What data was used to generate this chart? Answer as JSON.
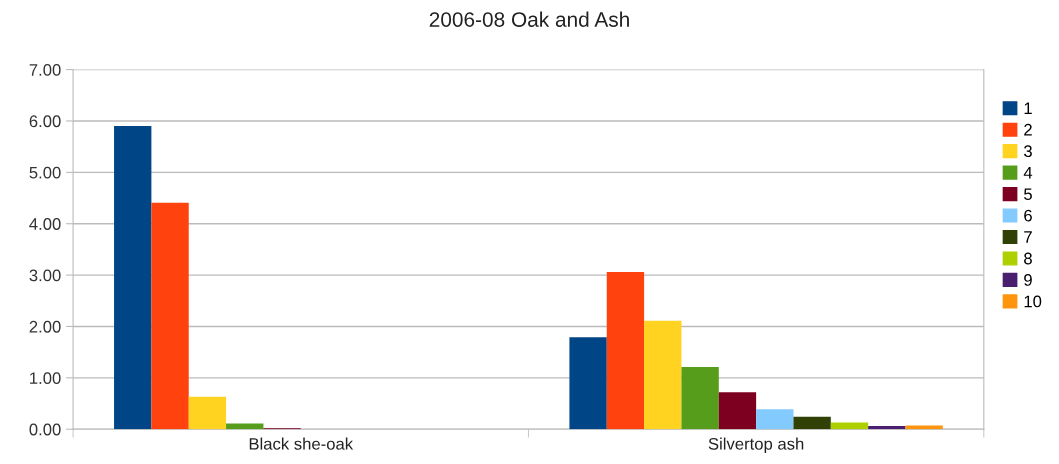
{
  "chart_data": {
    "type": "bar",
    "title": "2006-08 Oak and Ash",
    "categories": [
      "Black she-oak",
      "Silvertop ash"
    ],
    "series": [
      {
        "name": "1",
        "color": "#004586",
        "values": [
          5.9,
          1.79
        ]
      },
      {
        "name": "2",
        "color": "#ff420e",
        "values": [
          4.41,
          3.06
        ]
      },
      {
        "name": "3",
        "color": "#ffd320",
        "values": [
          0.63,
          2.11
        ]
      },
      {
        "name": "4",
        "color": "#579d1c",
        "values": [
          0.11,
          1.21
        ]
      },
      {
        "name": "5",
        "color": "#7e0021",
        "values": [
          0.02,
          0.72
        ]
      },
      {
        "name": "6",
        "color": "#83caff",
        "values": [
          0,
          0.39
        ]
      },
      {
        "name": "7",
        "color": "#314004",
        "values": [
          0,
          0.24
        ]
      },
      {
        "name": "8",
        "color": "#aecf00",
        "values": [
          0,
          0.13
        ]
      },
      {
        "name": "9",
        "color": "#4b1f6f",
        "values": [
          0,
          0.06
        ]
      },
      {
        "name": "10",
        "color": "#ff950e",
        "values": [
          0,
          0.07
        ]
      }
    ],
    "ylim": [
      0,
      7
    ],
    "yticks": [
      {
        "value": 0,
        "label": "0.00"
      },
      {
        "value": 1,
        "label": "1.00"
      },
      {
        "value": 2,
        "label": "2.00"
      },
      {
        "value": 3,
        "label": "3.00"
      },
      {
        "value": 4,
        "label": "4.00"
      },
      {
        "value": 5,
        "label": "5.00"
      },
      {
        "value": 6,
        "label": "6.00"
      },
      {
        "value": 7,
        "label": "7.00"
      }
    ],
    "grid": "y",
    "legend": "right"
  }
}
